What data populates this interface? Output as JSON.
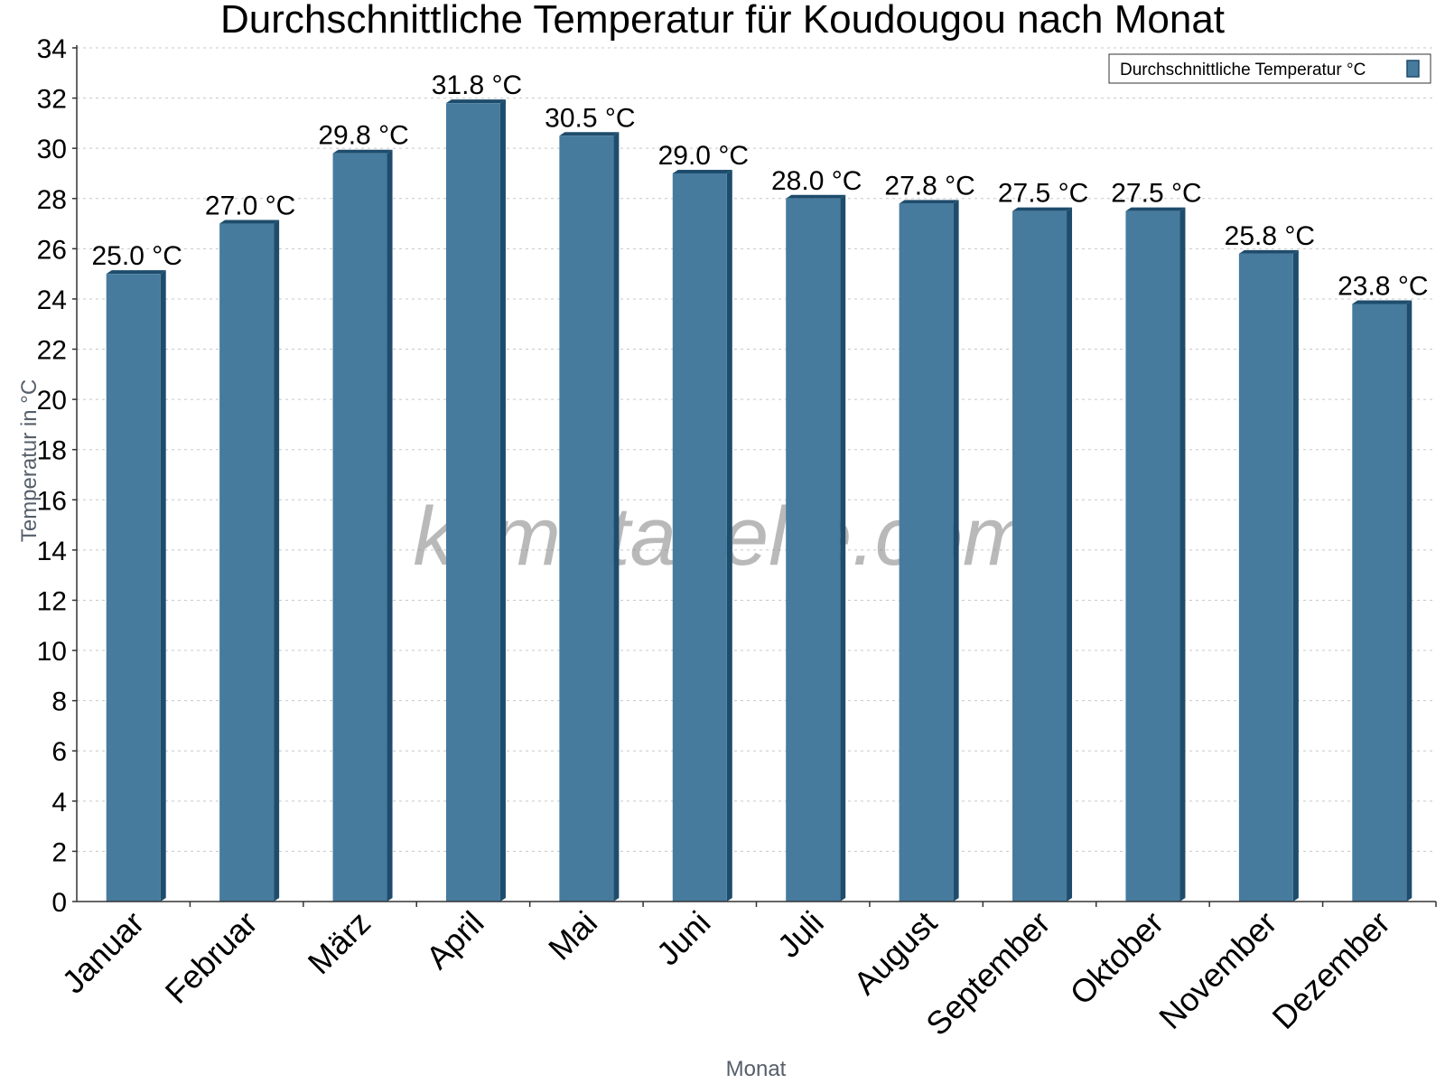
{
  "chart_data": {
    "type": "bar",
    "title": "Durchschnittliche Temperatur für Koudougou nach Monat",
    "xlabel": "Monat",
    "ylabel": "Temperatur in °C",
    "ylim": [
      0,
      34
    ],
    "ytick_step": 2,
    "grid": true,
    "legend_position": "top-right",
    "categories": [
      "Januar",
      "Februar",
      "März",
      "April",
      "Mai",
      "Juni",
      "Juli",
      "August",
      "September",
      "Oktober",
      "November",
      "Dezember"
    ],
    "series": [
      {
        "name": "Durchschnittliche Temperatur °C",
        "values": [
          25.0,
          27.0,
          29.8,
          31.8,
          30.5,
          29.0,
          28.0,
          27.8,
          27.5,
          27.5,
          25.8,
          23.8
        ],
        "labels": [
          "25.0 °C",
          "27.0 °C",
          "29.8 °C",
          "31.8 °C",
          "30.5 °C",
          "29.0 °C",
          "28.0 °C",
          "27.8 °C",
          "27.5 °C",
          "27.5 °C",
          "25.8 °C",
          "23.8 °C"
        ],
        "color": "#467b9e",
        "edge_color": "#1e4c6c"
      }
    ],
    "watermark": "klimatabelle.com"
  }
}
